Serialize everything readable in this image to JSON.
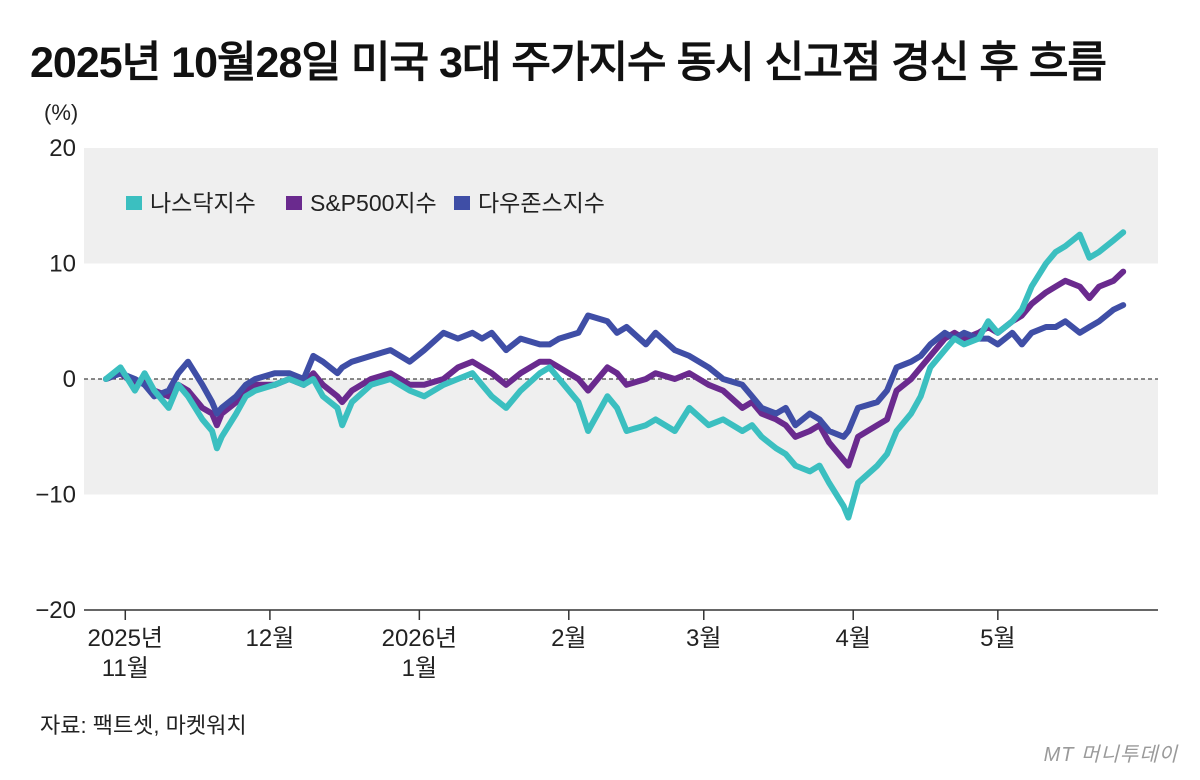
{
  "chart_data": {
    "type": "line",
    "title": "2025년 10월28일 미국 3대 주가지수 동시 신고점 경신 후 흐름",
    "ylabel": "(%)",
    "ylim": [
      -20,
      20
    ],
    "yticks": [
      {
        "value": 20,
        "label": "20"
      },
      {
        "value": 10,
        "label": "10"
      },
      {
        "value": 0,
        "label": "0"
      },
      {
        "value": -10,
        "label": "−10"
      },
      {
        "value": -20,
        "label": "−20"
      }
    ],
    "x_start_date": "2025-10-28",
    "x_end_date": "2026-05-28",
    "xticks": [
      {
        "date": "2025-11-01",
        "label": [
          "2025년",
          "11월"
        ]
      },
      {
        "date": "2025-12-01",
        "label": [
          "12월"
        ]
      },
      {
        "date": "2026-01-01",
        "label": [
          "2026년",
          "1월"
        ]
      },
      {
        "date": "2026-02-01",
        "label": [
          "2월"
        ]
      },
      {
        "date": "2026-03-01",
        "label": [
          "3월"
        ]
      },
      {
        "date": "2026-04-01",
        "label": [
          "4월"
        ]
      },
      {
        "date": "2026-05-01",
        "label": [
          "5월"
        ]
      }
    ],
    "grid": "alternating bands",
    "legend_position": "top-left",
    "series": [
      {
        "name": "나스닥지수",
        "color": "#3bbfc0",
        "points": [
          [
            "2025-10-28",
            0
          ],
          [
            "2025-10-31",
            1
          ],
          [
            "2025-11-03",
            -1
          ],
          [
            "2025-11-05",
            0.5
          ],
          [
            "2025-11-07",
            -1
          ],
          [
            "2025-11-10",
            -2.5
          ],
          [
            "2025-11-12",
            -0.5
          ],
          [
            "2025-11-14",
            -1.5
          ],
          [
            "2025-11-17",
            -3.5
          ],
          [
            "2025-11-19",
            -4.5
          ],
          [
            "2025-11-20",
            -6
          ],
          [
            "2025-11-21",
            -5
          ],
          [
            "2025-11-24",
            -3
          ],
          [
            "2025-11-26",
            -1.5
          ],
          [
            "2025-11-28",
            -1
          ],
          [
            "2025-12-02",
            -0.5
          ],
          [
            "2025-12-05",
            0
          ],
          [
            "2025-12-08",
            -0.5
          ],
          [
            "2025-12-10",
            0
          ],
          [
            "2025-12-12",
            -1.5
          ],
          [
            "2025-12-15",
            -2.5
          ],
          [
            "2025-12-16",
            -4
          ],
          [
            "2025-12-18",
            -2
          ],
          [
            "2025-12-22",
            -0.5
          ],
          [
            "2025-12-26",
            0
          ],
          [
            "2025-12-30",
            -1
          ],
          [
            "2026-01-02",
            -1.5
          ],
          [
            "2026-01-06",
            -0.5
          ],
          [
            "2026-01-09",
            0
          ],
          [
            "2026-01-12",
            0.5
          ],
          [
            "2026-01-14",
            -0.5
          ],
          [
            "2026-01-16",
            -1.5
          ],
          [
            "2026-01-19",
            -2.5
          ],
          [
            "2026-01-22",
            -1
          ],
          [
            "2026-01-26",
            0.5
          ],
          [
            "2026-01-28",
            1
          ],
          [
            "2026-01-30",
            0
          ],
          [
            "2026-02-03",
            -2
          ],
          [
            "2026-02-05",
            -4.5
          ],
          [
            "2026-02-09",
            -1.5
          ],
          [
            "2026-02-11",
            -2.5
          ],
          [
            "2026-02-13",
            -4.5
          ],
          [
            "2026-02-17",
            -4
          ],
          [
            "2026-02-19",
            -3.5
          ],
          [
            "2026-02-23",
            -4.5
          ],
          [
            "2026-02-26",
            -2.5
          ],
          [
            "2026-03-02",
            -4
          ],
          [
            "2026-03-05",
            -3.5
          ],
          [
            "2026-03-09",
            -4.5
          ],
          [
            "2026-03-11",
            -4
          ],
          [
            "2026-03-13",
            -5
          ],
          [
            "2026-03-16",
            -6
          ],
          [
            "2026-03-18",
            -6.5
          ],
          [
            "2026-03-20",
            -7.5
          ],
          [
            "2026-03-23",
            -8
          ],
          [
            "2026-03-25",
            -7.5
          ],
          [
            "2026-03-27",
            -9
          ],
          [
            "2026-03-30",
            -11
          ],
          [
            "2026-03-31",
            -12
          ],
          [
            "2026-04-02",
            -9
          ],
          [
            "2026-04-06",
            -7.5
          ],
          [
            "2026-04-08",
            -6.5
          ],
          [
            "2026-04-10",
            -4.5
          ],
          [
            "2026-04-13",
            -3
          ],
          [
            "2026-04-15",
            -1.5
          ],
          [
            "2026-04-17",
            1
          ],
          [
            "2026-04-20",
            2.5
          ],
          [
            "2026-04-22",
            3.5
          ],
          [
            "2026-04-24",
            3
          ],
          [
            "2026-04-27",
            3.5
          ],
          [
            "2026-04-29",
            5
          ],
          [
            "2026-05-01",
            4
          ],
          [
            "2026-05-04",
            5
          ],
          [
            "2026-05-06",
            6
          ],
          [
            "2026-05-08",
            8
          ],
          [
            "2026-05-11",
            10
          ],
          [
            "2026-05-13",
            11
          ],
          [
            "2026-05-15",
            11.5
          ],
          [
            "2026-05-18",
            12.5
          ],
          [
            "2026-05-20",
            10.5
          ],
          [
            "2026-05-22",
            11
          ],
          [
            "2026-05-25",
            12
          ],
          [
            "2026-05-27",
            12.7
          ]
        ]
      },
      {
        "name": "S&P500지수",
        "color": "#6a2a8e",
        "points": [
          [
            "2025-10-28",
            0
          ],
          [
            "2025-10-31",
            0.5
          ],
          [
            "2025-11-03",
            -0.5
          ],
          [
            "2025-11-05",
            0
          ],
          [
            "2025-11-07",
            -1
          ],
          [
            "2025-11-10",
            -1.5
          ],
          [
            "2025-11-12",
            -0.5
          ],
          [
            "2025-11-14",
            -1
          ],
          [
            "2025-11-17",
            -2.5
          ],
          [
            "2025-11-19",
            -3
          ],
          [
            "2025-11-20",
            -4
          ],
          [
            "2025-11-21",
            -3
          ],
          [
            "2025-11-24",
            -2
          ],
          [
            "2025-11-26",
            -1
          ],
          [
            "2025-11-28",
            -0.5
          ],
          [
            "2025-12-02",
            -0.5
          ],
          [
            "2025-12-05",
            0
          ],
          [
            "2025-12-08",
            -0.5
          ],
          [
            "2025-12-10",
            0.5
          ],
          [
            "2025-12-12",
            -0.5
          ],
          [
            "2025-12-15",
            -1.5
          ],
          [
            "2025-12-16",
            -2
          ],
          [
            "2025-12-18",
            -1
          ],
          [
            "2025-12-22",
            0
          ],
          [
            "2025-12-26",
            0.5
          ],
          [
            "2025-12-30",
            -0.5
          ],
          [
            "2026-01-02",
            -0.5
          ],
          [
            "2026-01-06",
            0
          ],
          [
            "2026-01-09",
            1
          ],
          [
            "2026-01-12",
            1.5
          ],
          [
            "2026-01-14",
            1
          ],
          [
            "2026-01-16",
            0.5
          ],
          [
            "2026-01-19",
            -0.5
          ],
          [
            "2026-01-22",
            0.5
          ],
          [
            "2026-01-26",
            1.5
          ],
          [
            "2026-01-28",
            1.5
          ],
          [
            "2026-01-30",
            1
          ],
          [
            "2026-02-03",
            0
          ],
          [
            "2026-02-05",
            -1
          ],
          [
            "2026-02-09",
            1
          ],
          [
            "2026-02-11",
            0.5
          ],
          [
            "2026-02-13",
            -0.5
          ],
          [
            "2026-02-17",
            0
          ],
          [
            "2026-02-19",
            0.5
          ],
          [
            "2026-02-23",
            0
          ],
          [
            "2026-02-26",
            0.5
          ],
          [
            "2026-03-02",
            -0.5
          ],
          [
            "2026-03-05",
            -1
          ],
          [
            "2026-03-09",
            -2.5
          ],
          [
            "2026-03-11",
            -2
          ],
          [
            "2026-03-13",
            -3
          ],
          [
            "2026-03-16",
            -3.5
          ],
          [
            "2026-03-18",
            -4
          ],
          [
            "2026-03-20",
            -5
          ],
          [
            "2026-03-23",
            -4.5
          ],
          [
            "2026-03-25",
            -4
          ],
          [
            "2026-03-27",
            -5.5
          ],
          [
            "2026-03-30",
            -7
          ],
          [
            "2026-03-31",
            -7.5
          ],
          [
            "2026-04-02",
            -5
          ],
          [
            "2026-04-06",
            -4
          ],
          [
            "2026-04-08",
            -3.5
          ],
          [
            "2026-04-10",
            -1
          ],
          [
            "2026-04-13",
            0
          ],
          [
            "2026-04-15",
            1
          ],
          [
            "2026-04-17",
            2
          ],
          [
            "2026-04-20",
            3.5
          ],
          [
            "2026-04-22",
            4
          ],
          [
            "2026-04-24",
            3.5
          ],
          [
            "2026-04-27",
            4
          ],
          [
            "2026-04-29",
            4.5
          ],
          [
            "2026-05-01",
            4
          ],
          [
            "2026-05-04",
            5
          ],
          [
            "2026-05-06",
            5.5
          ],
          [
            "2026-05-08",
            6.5
          ],
          [
            "2026-05-11",
            7.5
          ],
          [
            "2026-05-13",
            8
          ],
          [
            "2026-05-15",
            8.5
          ],
          [
            "2026-05-18",
            8
          ],
          [
            "2026-05-20",
            7
          ],
          [
            "2026-05-22",
            8
          ],
          [
            "2026-05-25",
            8.5
          ],
          [
            "2026-05-27",
            9.3
          ]
        ]
      },
      {
        "name": "다우존스지수",
        "color": "#3f4ea6",
        "points": [
          [
            "2025-10-28",
            0
          ],
          [
            "2025-10-31",
            0.5
          ],
          [
            "2025-11-03",
            0
          ],
          [
            "2025-11-05",
            -0.5
          ],
          [
            "2025-11-07",
            -1.5
          ],
          [
            "2025-11-10",
            -1
          ],
          [
            "2025-11-12",
            0.5
          ],
          [
            "2025-11-14",
            1.5
          ],
          [
            "2025-11-17",
            -0.5
          ],
          [
            "2025-11-19",
            -2
          ],
          [
            "2025-11-20",
            -3
          ],
          [
            "2025-11-21",
            -2.5
          ],
          [
            "2025-11-24",
            -1.5
          ],
          [
            "2025-11-26",
            -0.5
          ],
          [
            "2025-11-28",
            0
          ],
          [
            "2025-12-02",
            0.5
          ],
          [
            "2025-12-05",
            0.5
          ],
          [
            "2025-12-08",
            0
          ],
          [
            "2025-12-10",
            2
          ],
          [
            "2025-12-12",
            1.5
          ],
          [
            "2025-12-15",
            0.5
          ],
          [
            "2025-12-16",
            1
          ],
          [
            "2025-12-18",
            1.5
          ],
          [
            "2025-12-22",
            2
          ],
          [
            "2025-12-26",
            2.5
          ],
          [
            "2025-12-30",
            1.5
          ],
          [
            "2026-01-02",
            2.5
          ],
          [
            "2026-01-06",
            4
          ],
          [
            "2026-01-09",
            3.5
          ],
          [
            "2026-01-12",
            4
          ],
          [
            "2026-01-14",
            3.5
          ],
          [
            "2026-01-16",
            4
          ],
          [
            "2026-01-19",
            2.5
          ],
          [
            "2026-01-22",
            3.5
          ],
          [
            "2026-01-26",
            3
          ],
          [
            "2026-01-28",
            3
          ],
          [
            "2026-01-30",
            3.5
          ],
          [
            "2026-02-03",
            4
          ],
          [
            "2026-02-05",
            5.5
          ],
          [
            "2026-02-09",
            5
          ],
          [
            "2026-02-11",
            4
          ],
          [
            "2026-02-13",
            4.5
          ],
          [
            "2026-02-17",
            3
          ],
          [
            "2026-02-19",
            4
          ],
          [
            "2026-02-23",
            2.5
          ],
          [
            "2026-02-26",
            2
          ],
          [
            "2026-03-02",
            1
          ],
          [
            "2026-03-05",
            0
          ],
          [
            "2026-03-09",
            -0.5
          ],
          [
            "2026-03-11",
            -1.5
          ],
          [
            "2026-03-13",
            -2.5
          ],
          [
            "2026-03-16",
            -3
          ],
          [
            "2026-03-18",
            -2.5
          ],
          [
            "2026-03-20",
            -4
          ],
          [
            "2026-03-23",
            -3
          ],
          [
            "2026-03-25",
            -3.5
          ],
          [
            "2026-03-27",
            -4.5
          ],
          [
            "2026-03-30",
            -5
          ],
          [
            "2026-03-31",
            -4.5
          ],
          [
            "2026-04-02",
            -2.5
          ],
          [
            "2026-04-06",
            -2
          ],
          [
            "2026-04-08",
            -1
          ],
          [
            "2026-04-10",
            1
          ],
          [
            "2026-04-13",
            1.5
          ],
          [
            "2026-04-15",
            2
          ],
          [
            "2026-04-17",
            3
          ],
          [
            "2026-04-20",
            4
          ],
          [
            "2026-04-22",
            3.5
          ],
          [
            "2026-04-24",
            4
          ],
          [
            "2026-04-27",
            3.5
          ],
          [
            "2026-04-29",
            3.5
          ],
          [
            "2026-05-01",
            3
          ],
          [
            "2026-05-04",
            4
          ],
          [
            "2026-05-06",
            3
          ],
          [
            "2026-05-08",
            4
          ],
          [
            "2026-05-11",
            4.5
          ],
          [
            "2026-05-13",
            4.5
          ],
          [
            "2026-05-15",
            5
          ],
          [
            "2026-05-18",
            4
          ],
          [
            "2026-05-20",
            4.5
          ],
          [
            "2026-05-22",
            5
          ],
          [
            "2026-05-25",
            6
          ],
          [
            "2026-05-27",
            6.4
          ]
        ]
      }
    ]
  },
  "footer": {
    "source": "자료: 팩트셋, 마켓워치",
    "watermark": "MT 머니투데이"
  }
}
